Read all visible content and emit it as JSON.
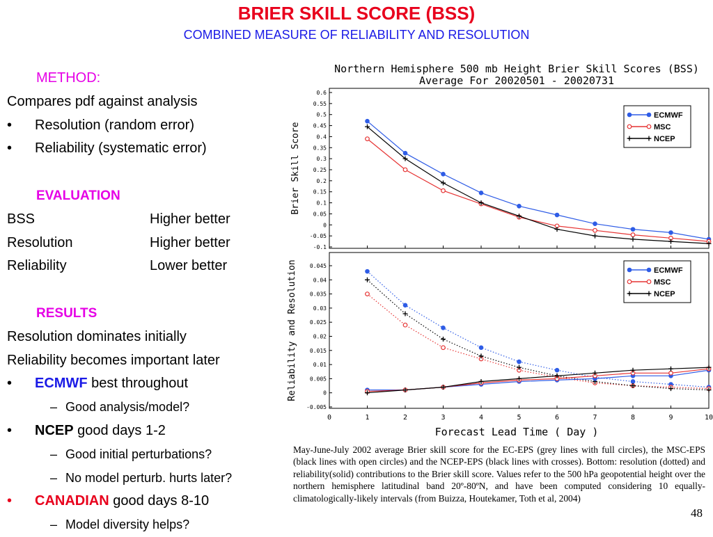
{
  "slide": {
    "title": "BRIER SKILL SCORE (BSS)",
    "subtitle": "COMBINED MEASURE OF RELIABILITY AND RESOLUTION",
    "page_number": "48",
    "colors": {
      "title": "#e8001c",
      "subtitle": "#1a1ae6",
      "section_heading": "#e600e6",
      "ecmwf": "#1a1ae6",
      "canadian": "#e8001c"
    }
  },
  "left": {
    "method_heading": "METHOD:",
    "method_text": "Compares pdf against analysis",
    "method_bullets": [
      "Resolution (random error)",
      "Reliability (systematic error)"
    ],
    "evaluation_heading": "EVALUATION",
    "evaluation_rows": [
      {
        "metric": "BSS",
        "rule": "Higher better"
      },
      {
        "metric": "Resolution",
        "rule": "Higher better"
      },
      {
        "metric": "Reliability",
        "rule": "Lower better"
      }
    ],
    "results_heading": "RESULTS",
    "results_lines": [
      "Resolution dominates initially",
      "Reliability becomes important later"
    ],
    "results_items": [
      {
        "bold": "ECMWF",
        "rest": " best throughout",
        "sub": "Good analysis/model?"
      },
      {
        "bold": "NCEP",
        "rest": " good days 1-2",
        "subs": [
          "Good initial perturbations?",
          "No model perturb. hurts later?"
        ]
      },
      {
        "bold": "CANADIAN",
        "rest": " good days 8-10",
        "sub": "Model diversity helps?"
      }
    ],
    "bullet_char": "•",
    "dash_char": "–"
  },
  "caption": "May-June-July 2002 average Brier skill score for the EC-EPS (grey lines with full circles), the MSC-EPS (black lines with open circles) and the NCEP-EPS (black lines with crosses). Bottom: resolution (dotted) and reliability(solid) contributions to the Brier skill score. Values refer to the 500 hPa geopotential height over the northern hemisphere latitudinal band 20º-80ºN, and have been computed considering 10 equally-climatologically-likely intervals (from Buizza, Houtekamer, Toth et al, 2004)",
  "chart_data": [
    {
      "type": "line",
      "title": "Northern Hemisphere 500 mb Height Brier Skill Scores (BSS)",
      "subtitle": "Average For 20020501 - 20020731",
      "ylabel": "Brier Skill Score",
      "xlabel": "",
      "xlim": [
        0,
        10
      ],
      "ylim": [
        -0.1,
        0.6
      ],
      "yticks": [
        "0.6",
        "0.55",
        "0.5",
        "0.45",
        "0.4",
        "0.35",
        "0.3",
        "0.25",
        "0.2",
        "0.15",
        "0.1",
        "0.05",
        "0",
        "-0.05",
        "-0.1"
      ],
      "legend": "top-right",
      "x": [
        1,
        2,
        3,
        4,
        5,
        6,
        7,
        8,
        9,
        10
      ],
      "series": [
        {
          "name": "ECMWF",
          "color": "#2e5ce6",
          "marker": "filled-circle",
          "values": [
            0.47,
            0.325,
            0.23,
            0.145,
            0.085,
            0.045,
            0.005,
            -0.02,
            -0.035,
            -0.065
          ]
        },
        {
          "name": "MSC",
          "color": "#e63333",
          "marker": "open-circle",
          "values": [
            0.39,
            0.25,
            0.155,
            0.095,
            0.035,
            -0.005,
            -0.025,
            -0.045,
            -0.06,
            -0.075
          ]
        },
        {
          "name": "NCEP",
          "color": "#000000",
          "marker": "cross",
          "values": [
            0.445,
            0.3,
            0.19,
            0.1,
            0.04,
            -0.02,
            -0.05,
            -0.065,
            -0.075,
            -0.085
          ]
        }
      ]
    },
    {
      "type": "line",
      "title": "",
      "ylabel": "Reliability and Resolution",
      "xlabel": "Forecast Lead Time ( Day )",
      "xlim": [
        0,
        10
      ],
      "ylim": [
        -0.0075,
        0.046
      ],
      "yticks": [
        "0.045",
        "0.04",
        "0.035",
        "0.03",
        "0.025",
        "0.02",
        "0.015",
        "0.01",
        "0.005",
        "0",
        "-0.005"
      ],
      "xticks": [
        "0",
        "1",
        "2",
        "3",
        "4",
        "5",
        "6",
        "7",
        "8",
        "9",
        "10"
      ],
      "legend": "top-right",
      "x": [
        1,
        2,
        3,
        4,
        5,
        6,
        7,
        8,
        9,
        10
      ],
      "series": [
        {
          "name": "ECMWF",
          "color": "#2e5ce6",
          "marker": "filled-circle",
          "style": "dotted",
          "component": "resolution",
          "values": [
            0.043,
            0.031,
            0.023,
            0.016,
            0.011,
            0.008,
            0.0055,
            0.004,
            0.003,
            0.002
          ]
        },
        {
          "name": "MSC",
          "color": "#e63333",
          "marker": "open-circle",
          "style": "dotted",
          "component": "resolution",
          "values": [
            0.035,
            0.024,
            0.016,
            0.012,
            0.008,
            0.0055,
            0.0035,
            0.0025,
            0.002,
            0.0015
          ]
        },
        {
          "name": "NCEP",
          "color": "#000000",
          "marker": "cross",
          "style": "dotted",
          "component": "resolution",
          "values": [
            0.04,
            0.028,
            0.019,
            0.013,
            0.009,
            0.006,
            0.004,
            0.0025,
            0.0015,
            0.001
          ]
        },
        {
          "name": "ECMWF",
          "color": "#2e5ce6",
          "marker": "filled-circle",
          "style": "solid",
          "component": "reliability",
          "values": [
            0.001,
            0.001,
            0.002,
            0.003,
            0.004,
            0.0045,
            0.005,
            0.006,
            0.006,
            0.008
          ]
        },
        {
          "name": "MSC",
          "color": "#e63333",
          "marker": "open-circle",
          "style": "solid",
          "component": "reliability",
          "values": [
            0.0005,
            0.001,
            0.002,
            0.0035,
            0.0045,
            0.005,
            0.006,
            0.007,
            0.007,
            0.0085
          ]
        },
        {
          "name": "NCEP",
          "color": "#000000",
          "marker": "cross",
          "style": "solid",
          "component": "reliability",
          "values": [
            0.0,
            0.001,
            0.002,
            0.004,
            0.005,
            0.006,
            0.007,
            0.008,
            0.0085,
            0.009
          ]
        }
      ]
    }
  ]
}
